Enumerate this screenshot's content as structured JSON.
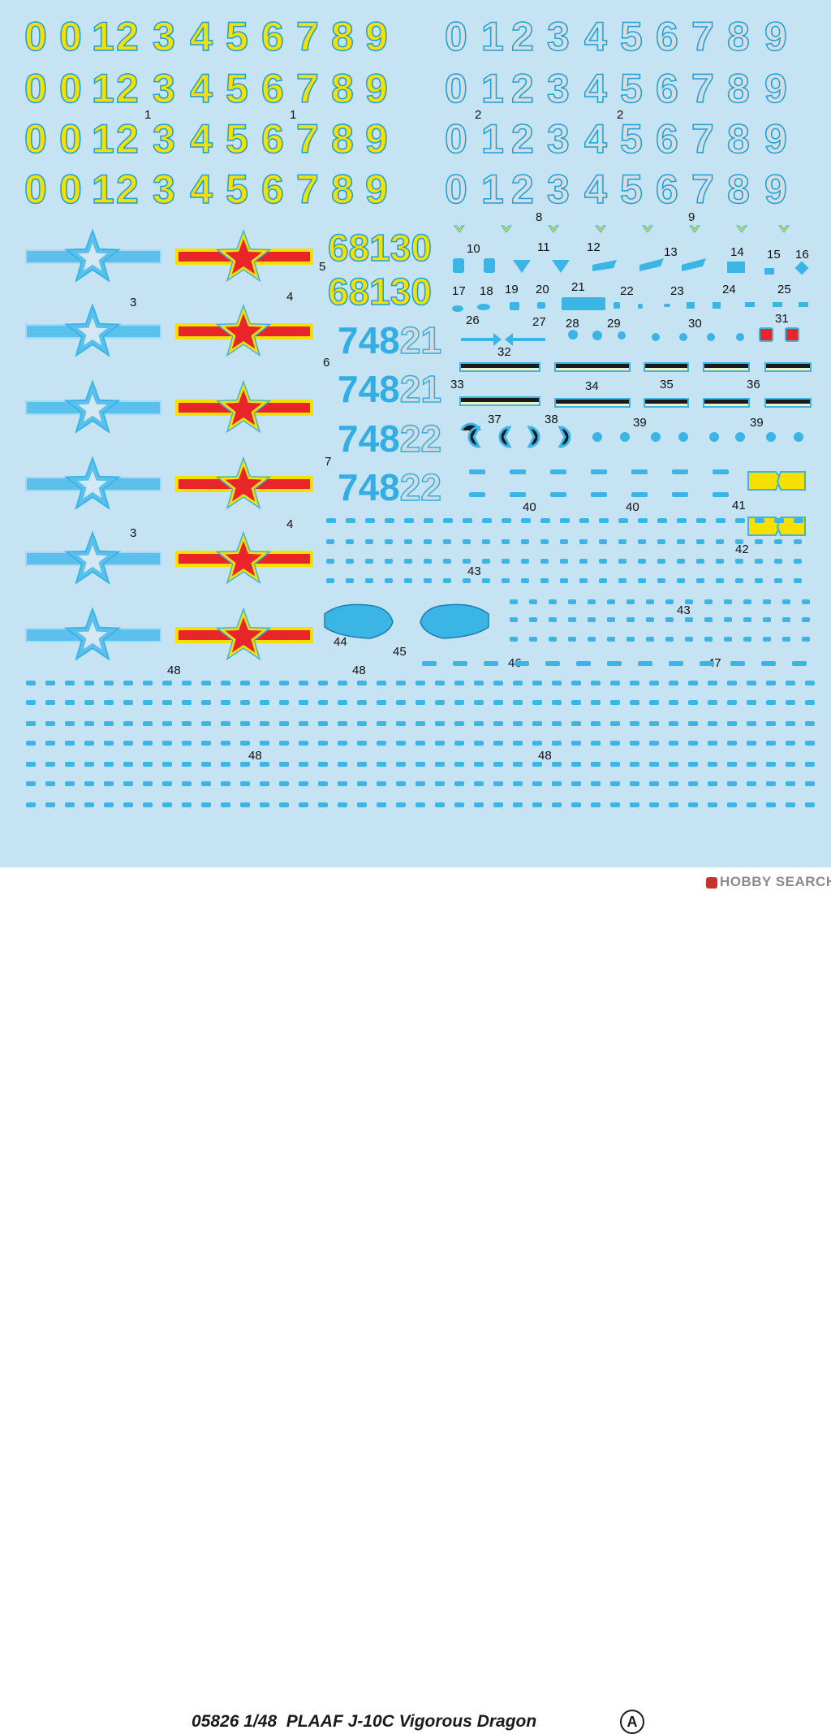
{
  "digit_rows": {
    "digits": [
      "0",
      "0",
      "1",
      "2",
      "3",
      "4",
      "5",
      "6",
      "7",
      "8",
      "9"
    ],
    "yellow_color": "#f6e000",
    "gray_color": "#d6dde2",
    "outline_color": "#1d9fd8"
  },
  "labels": {
    "l1a": "1",
    "l1b": "1",
    "l2a": "2",
    "l2b": "2",
    "l3a": "3",
    "l3b": "3",
    "l4a": "4",
    "l4b": "4",
    "l5": "5",
    "l6": "6",
    "l7": "7",
    "l8": "8",
    "l9": "9",
    "l10": "10",
    "l11": "11",
    "l12": "12",
    "l13": "13",
    "l14": "14",
    "l15": "15",
    "l16": "16",
    "l17": "17",
    "l18": "18",
    "l19": "19",
    "l20": "20",
    "l21": "21",
    "l22": "22",
    "l23": "23",
    "l24": "24",
    "l25": "25",
    "l26": "26",
    "l27": "27",
    "l28": "28",
    "l29": "29",
    "l30": "30",
    "l31": "31",
    "l32": "32",
    "l33": "33",
    "l34": "34",
    "l35": "35",
    "l36": "36",
    "l37": "37",
    "l38": "38",
    "l39a": "39",
    "l39b": "39",
    "l40a": "40",
    "l40b": "40",
    "l41": "41",
    "l42": "42",
    "l43a": "43",
    "l43b": "43",
    "l44": "44",
    "l45": "45",
    "l46": "46",
    "l47": "47",
    "l48a": "48",
    "l48b": "48",
    "l48c": "48",
    "l48d": "48"
  },
  "tail_numbers": {
    "yellow_1": "68130",
    "yellow_2": "68130",
    "blue_1_a": "748",
    "blue_1_b": "21",
    "blue_2_a": "748",
    "blue_2_b": "21",
    "blue_3_a": "748",
    "blue_3_b": "22",
    "blue_4_a": "748",
    "blue_4_b": "22"
  },
  "colors": {
    "sheet_background": "#c5e3f3",
    "insignia_blue": "#5cc0ec",
    "insignia_red": "#e8262a",
    "insignia_yellow": "#f6e000"
  },
  "footer": {
    "product_number": "05826",
    "scale": "1/48",
    "title": "PLAAF J-10C Vigorous Dragon",
    "sheet_letter": "A"
  },
  "watermark": {
    "text": "HOBBY SEARCH"
  }
}
